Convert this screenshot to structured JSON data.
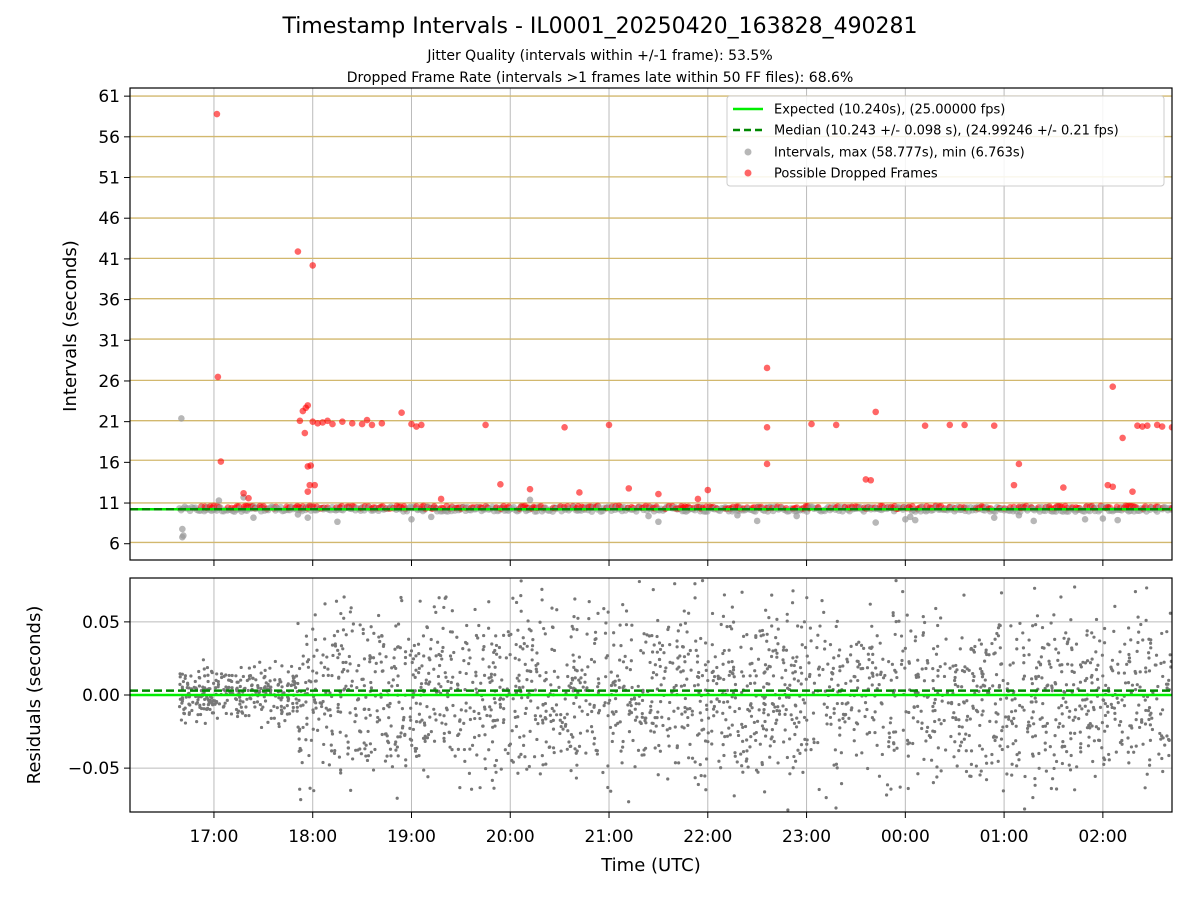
{
  "chart_data": [
    {
      "type": "scatter",
      "title": "Timestamp Intervals - IL0001_20250420_163828_490281",
      "subtitle_lines": [
        "Jitter Quality (intervals within +/-1 frame): 53.5%",
        "Dropped Frame Rate (intervals >1 frames late within 50 FF files): 68.6%"
      ],
      "ylabel": "Intervals (seconds)",
      "ylim": [
        4,
        62
      ],
      "yticks": [
        "6",
        "11",
        "16",
        "21",
        "26",
        "31",
        "36",
        "41",
        "46",
        "51",
        "56",
        "61"
      ],
      "x_ticks": [
        "17:00",
        "18:00",
        "19:00",
        "20:00",
        "21:00",
        "22:00",
        "23:00",
        "00:00",
        "01:00",
        "02:00"
      ],
      "x_range_hours": [
        16.15,
        26.7
      ],
      "reference_lines_y": [
        6.16,
        11.01,
        16.26,
        21.12,
        26.07,
        31.15,
        36.11,
        41.06,
        46.02,
        51.08,
        56.03,
        61.01
      ],
      "series": [
        {
          "name": "Expected (10.240s), (25.00000 fps)",
          "style": "line",
          "color": "#00ee00",
          "y": 10.24
        },
        {
          "name": "Median (10.243 +/- 0.098 s), (24.99246 +/- 0.21 fps)",
          "style": "dashed",
          "color": "#008800",
          "y": 10.243
        },
        {
          "name": "Intervals, max (58.777s), min (6.763s)",
          "style": "points",
          "color": "#999999",
          "points": [
            [
              16.67,
              21.4
            ],
            [
              16.68,
              7.8
            ],
            [
              16.68,
              6.8
            ],
            [
              16.69,
              7.0
            ],
            [
              17.05,
              11.3
            ],
            [
              17.3,
              11.7
            ],
            [
              17.4,
              9.2
            ],
            [
              17.6,
              10.4
            ],
            [
              17.85,
              9.6
            ],
            [
              17.95,
              9.2
            ],
            [
              18.25,
              8.7
            ],
            [
              19.0,
              9.0
            ],
            [
              19.2,
              9.3
            ],
            [
              20.2,
              11.4
            ],
            [
              21.4,
              9.4
            ],
            [
              21.5,
              8.7
            ],
            [
              22.3,
              9.5
            ],
            [
              22.5,
              8.8
            ],
            [
              22.9,
              9.4
            ],
            [
              23.7,
              8.6
            ],
            [
              24.0,
              9.0
            ],
            [
              24.05,
              9.3
            ],
            [
              24.1,
              8.9
            ],
            [
              24.9,
              9.2
            ],
            [
              25.15,
              9.5
            ],
            [
              25.3,
              8.8
            ],
            [
              25.82,
              9.0
            ],
            [
              26.0,
              9.1
            ],
            [
              26.15,
              8.9
            ]
          ]
        },
        {
          "name": "Possible Dropped Frames",
          "style": "points",
          "color": "#ff0000",
          "points": [
            [
              17.03,
              58.8
            ],
            [
              17.04,
              26.5
            ],
            [
              17.07,
              16.1
            ],
            [
              17.3,
              12.2
            ],
            [
              17.35,
              11.6
            ],
            [
              17.85,
              41.9
            ],
            [
              18.0,
              40.2
            ],
            [
              17.87,
              21.1
            ],
            [
              17.9,
              22.3
            ],
            [
              17.93,
              22.7
            ],
            [
              17.95,
              23.0
            ],
            [
              17.92,
              19.6
            ],
            [
              17.95,
              15.5
            ],
            [
              17.98,
              15.6
            ],
            [
              17.97,
              13.2
            ],
            [
              17.95,
              12.4
            ],
            [
              18.0,
              21.0
            ],
            [
              18.02,
              13.2
            ],
            [
              18.05,
              20.8
            ],
            [
              18.1,
              20.9
            ],
            [
              18.15,
              21.1
            ],
            [
              18.2,
              20.7
            ],
            [
              18.3,
              21.0
            ],
            [
              18.4,
              20.8
            ],
            [
              18.5,
              20.7
            ],
            [
              18.55,
              21.2
            ],
            [
              18.6,
              20.6
            ],
            [
              18.7,
              20.8
            ],
            [
              18.9,
              22.1
            ],
            [
              19.0,
              20.7
            ],
            [
              19.05,
              20.4
            ],
            [
              19.1,
              20.6
            ],
            [
              19.3,
              11.5
            ],
            [
              19.75,
              20.6
            ],
            [
              19.9,
              13.3
            ],
            [
              20.2,
              12.7
            ],
            [
              20.55,
              20.3
            ],
            [
              20.7,
              12.3
            ],
            [
              21.0,
              20.6
            ],
            [
              21.2,
              12.8
            ],
            [
              21.5,
              12.1
            ],
            [
              21.9,
              11.5
            ],
            [
              22.0,
              12.6
            ],
            [
              22.6,
              27.6
            ],
            [
              22.6,
              20.3
            ],
            [
              22.6,
              15.8
            ],
            [
              23.05,
              20.7
            ],
            [
              23.3,
              20.6
            ],
            [
              23.7,
              22.2
            ],
            [
              23.6,
              13.9
            ],
            [
              23.65,
              13.8
            ],
            [
              24.2,
              20.5
            ],
            [
              24.45,
              20.6
            ],
            [
              24.6,
              20.6
            ],
            [
              24.9,
              20.5
            ],
            [
              25.15,
              15.8
            ],
            [
              25.1,
              13.2
            ],
            [
              25.6,
              12.9
            ],
            [
              26.1,
              25.3
            ],
            [
              26.05,
              13.2
            ],
            [
              26.1,
              13.0
            ],
            [
              26.3,
              12.4
            ],
            [
              26.2,
              19.0
            ],
            [
              26.35,
              20.5
            ],
            [
              26.4,
              20.4
            ],
            [
              26.45,
              20.5
            ],
            [
              26.55,
              20.6
            ],
            [
              26.6,
              20.4
            ],
            [
              26.7,
              20.3
            ]
          ]
        }
      ]
    },
    {
      "type": "scatter",
      "xlabel": "Time (UTC)",
      "ylabel": "Residuals (seconds)",
      "ylim": [
        -0.08,
        0.08
      ],
      "yticks": [
        "0.05",
        "0.00",
        "−0.05"
      ],
      "zero_line_color": "#00ee00",
      "median_offset": 0.003,
      "point_color": "#777777"
    }
  ],
  "title": "Timestamp Intervals - IL0001_20250420_163828_490281",
  "subtitle": {
    "line1": "Jitter Quality (intervals within +/-1 frame): 53.5%",
    "line2": "Dropped Frame Rate (intervals >1 frames late within 50 FF files): 68.6%"
  },
  "legend": {
    "expected": "Expected (10.240s), (25.00000 fps)",
    "median": "Median (10.243 +/- 0.098 s), (24.99246 +/- 0.21 fps)",
    "intervals": "Intervals, max (58.777s), min (6.763s)",
    "dropped": "Possible Dropped Frames"
  },
  "axes": {
    "top_ylabel": "Intervals (seconds)",
    "bottom_ylabel": "Residuals (seconds)",
    "xlabel": "Time (UTC)"
  }
}
